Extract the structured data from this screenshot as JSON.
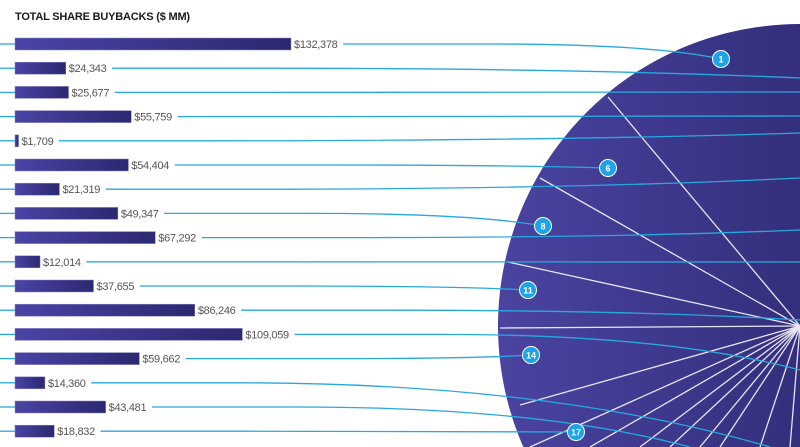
{
  "chart_data": {
    "type": "bar",
    "title": "TOTAL SHARE BUYBACKS ($ MM)",
    "orientation": "horizontal",
    "values": [
      132378,
      24343,
      25677,
      55759,
      1709,
      54404,
      21319,
      49347,
      67292,
      12014,
      37655,
      86246,
      109059,
      59662,
      14360,
      43481,
      18832
    ],
    "labels": [
      "$132,378",
      "$24,343",
      "$25,677",
      "$55,759",
      "$1,709",
      "$54,404",
      "$21,319",
      "$49,347",
      "$67,292",
      "$12,014",
      "$37,655",
      "$86,246",
      "$109,059",
      "$59,662",
      "$14,360",
      "$43,481",
      "$18,832"
    ],
    "pie_badges": [
      "1",
      "6",
      "8",
      "11",
      "14",
      "17"
    ],
    "colors": {
      "bar": "#3a3585",
      "pie": "#3d3a8c",
      "leader": "#29a8e0",
      "badge": "#1fa3e8"
    }
  }
}
